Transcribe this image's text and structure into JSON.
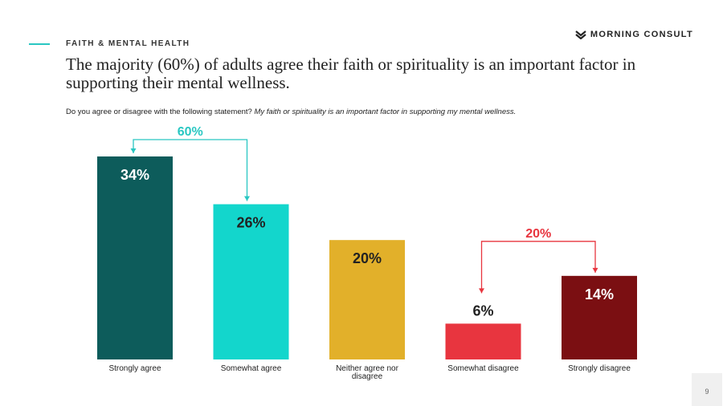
{
  "header": {
    "section_label": "FAITH & MENTAL HEALTH",
    "brand_name": "MORNING CONSULT",
    "title": "The majority (60%) of adults agree their faith or spirituality is an important factor in supporting their mental wellness.",
    "question_prefix": "Do you agree or disagree with the following statement?",
    "question_italic": "My faith or spirituality is an important factor in supporting my mental wellness."
  },
  "page_number": "9",
  "colors": {
    "accent": "#29c7c2",
    "agree_bracket": "#29c7c2",
    "disagree_bracket": "#e8353f"
  },
  "chart_data": {
    "type": "bar",
    "categories": [
      "Strongly agree",
      "Somewhat agree",
      "Neither agree nor disagree",
      "Somewhat disagree",
      "Strongly disagree"
    ],
    "category_lines": [
      [
        "Strongly agree"
      ],
      [
        "Somewhat agree"
      ],
      [
        "Neither agree nor",
        "disagree"
      ],
      [
        "Somewhat disagree"
      ],
      [
        "Strongly disagree"
      ]
    ],
    "values": [
      34,
      26,
      20,
      6,
      14
    ],
    "value_labels": [
      "34%",
      "26%",
      "20%",
      "6%",
      "14%"
    ],
    "bar_colors": [
      "#0d5c5b",
      "#13d6cc",
      "#e2b02a",
      "#e8353f",
      "#7b0f12"
    ],
    "label_colors": [
      "#ffffff",
      "#222222",
      "#222222",
      "#222222",
      "#ffffff"
    ],
    "ylim": [
      0,
      34
    ],
    "grid": false,
    "annotations": [
      {
        "label": "60%",
        "from": 0,
        "to": 1,
        "color": "#29c7c2"
      },
      {
        "label": "20%",
        "from": 3,
        "to": 4,
        "color": "#e8353f"
      }
    ]
  }
}
